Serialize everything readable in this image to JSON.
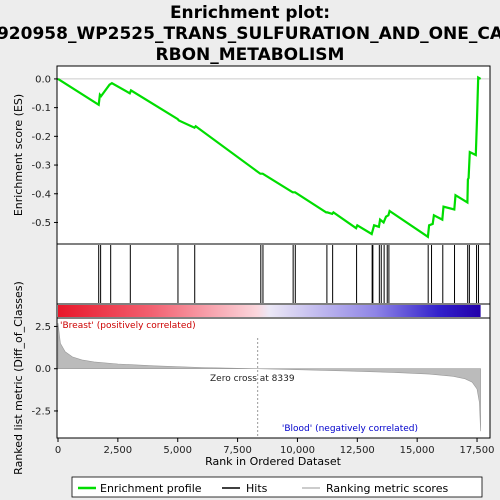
{
  "chart_data": {
    "type": "line",
    "title_lines": [
      "Enrichment plot:",
      "920958_WP2525_TRANS_SULFURATION_AND_ONE_CA",
      "RBON_METABOLISM"
    ],
    "top_panel": {
      "ylabel": "Enrichment score (ES)",
      "ylim": [
        -0.575,
        0.045
      ],
      "yticks": [
        0.0,
        -0.1,
        -0.2,
        -0.3,
        -0.4,
        -0.5
      ],
      "ytick_labels": [
        "0.0",
        "-0.1",
        "-0.2",
        "-0.3",
        "-0.4",
        "-0.5"
      ],
      "series_name": "Enrichment profile",
      "color": "#00dd00",
      "x": [
        0,
        1700,
        1750,
        1800,
        2150,
        2250,
        3000,
        3050,
        5000,
        5050,
        5700,
        5750,
        8450,
        8550,
        9800,
        9900,
        11200,
        11250,
        11450,
        11500,
        12450,
        12500,
        13100,
        13200,
        13400,
        13450,
        13600,
        13700,
        13800,
        13850,
        15450,
        15500,
        15650,
        15700,
        16050,
        16100,
        16550,
        16600,
        17100,
        17120,
        17150,
        17200,
        17450,
        17500,
        17550,
        17650
      ],
      "y": [
        0.0,
        -0.09,
        -0.055,
        -0.06,
        -0.02,
        -0.015,
        -0.05,
        -0.04,
        -0.14,
        -0.145,
        -0.17,
        -0.165,
        -0.33,
        -0.33,
        -0.395,
        -0.395,
        -0.465,
        -0.465,
        -0.47,
        -0.465,
        -0.52,
        -0.51,
        -0.54,
        -0.51,
        -0.515,
        -0.49,
        -0.5,
        -0.48,
        -0.475,
        -0.46,
        -0.55,
        -0.51,
        -0.505,
        -0.475,
        -0.49,
        -0.445,
        -0.455,
        -0.405,
        -0.43,
        -0.35,
        -0.345,
        -0.255,
        -0.265,
        -0.14,
        0.005,
        0.0
      ]
    },
    "hits": [
      1700,
      1780,
      2200,
      3020,
      5010,
      5710,
      8470,
      8560,
      9820,
      9910,
      11230,
      11470,
      12470,
      13120,
      13150,
      13420,
      13500,
      13620,
      13750,
      13820,
      15460,
      15600,
      16070,
      16560,
      17110,
      17180,
      17480,
      17560
    ],
    "rank_panel": {
      "ylabel": "Ranked list metric (Diff_of_Classes)",
      "ylim": [
        -4.1,
        3.0
      ],
      "yticks": [
        2.5,
        0.0,
        -2.5
      ],
      "ytick_labels": [
        "2.5",
        "0.0",
        "-2.5"
      ],
      "metric_x": [
        0,
        100,
        300,
        600,
        1000,
        1500,
        2500,
        4000,
        6000,
        8339,
        10000,
        12000,
        14000,
        15500,
        16500,
        17000,
        17300,
        17500,
        17600,
        17650
      ],
      "metric_y": [
        2.7,
        1.5,
        1.0,
        0.7,
        0.52,
        0.4,
        0.28,
        0.17,
        0.07,
        0.0,
        -0.06,
        -0.13,
        -0.22,
        -0.32,
        -0.45,
        -0.6,
        -0.8,
        -1.2,
        -2.0,
        -3.7
      ],
      "zero_cross_label": "Zero cross at 8339",
      "zero_cross": 8339,
      "pos_label": "'Breast' (positively correlated)",
      "neg_label": "'Blood' (negatively correlated)",
      "metric_color": "#bbbbbb"
    },
    "xlabel": "Rank in Ordered Dataset",
    "xlim": [
      0,
      18000
    ],
    "xticks": [
      0,
      2500,
      5000,
      7500,
      10000,
      12500,
      15000,
      17500
    ],
    "xtick_labels": [
      "0",
      "2,500",
      "5,000",
      "7,500",
      "10,000",
      "12,500",
      "15,000",
      "17,500"
    ],
    "n_genes": 17650,
    "legend": [
      {
        "label": "Enrichment profile",
        "color": "#00dd00"
      },
      {
        "label": "Hits",
        "color": "#000000"
      },
      {
        "label": "Ranking metric scores",
        "color": "#bbbbbb"
      }
    ]
  }
}
